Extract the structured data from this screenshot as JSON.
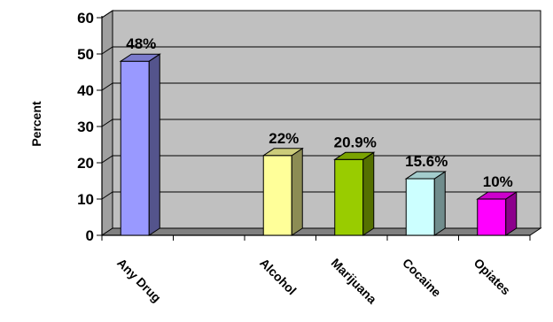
{
  "chart_data": {
    "type": "bar",
    "categories": [
      "Any Drug",
      "",
      "Alcohol",
      "Marijuana",
      "Cocaine",
      "Opiates"
    ],
    "values": [
      48,
      null,
      22,
      20.9,
      15.6,
      10
    ],
    "data_labels": [
      "48%",
      "",
      "22%",
      "20.9%",
      "15.6%",
      "10%"
    ],
    "colors": [
      "#9999ff",
      null,
      "#ffff99",
      "#99cc00",
      "#ccffff",
      "#ff00ff"
    ],
    "title": "",
    "xlabel": "",
    "ylabel": "Percent",
    "ylim": [
      0,
      60
    ],
    "yticks": [
      0,
      10,
      20,
      30,
      40,
      50,
      60
    ],
    "grid": true,
    "legend": "none",
    "plot_background": "#c0c0c0",
    "three_d": true
  }
}
